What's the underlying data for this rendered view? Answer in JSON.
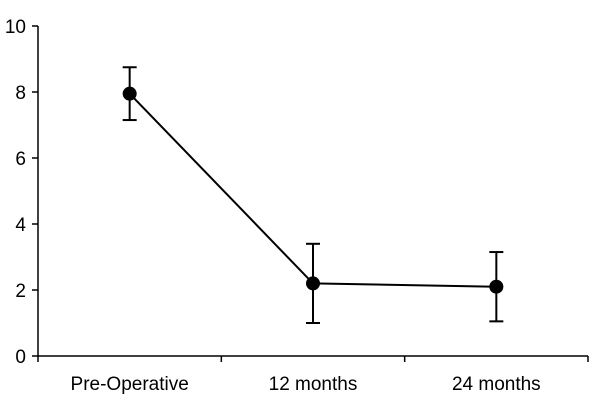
{
  "chart_data": {
    "type": "line",
    "title": "",
    "xlabel": "",
    "ylabel": "",
    "categories": [
      "Pre-Operative",
      "12 months",
      "24 months"
    ],
    "series": [
      {
        "values": [
          7.95,
          2.2,
          2.1
        ],
        "error_low": [
          7.15,
          1.0,
          1.05
        ],
        "error_high": [
          8.75,
          3.4,
          3.15
        ],
        "color": "#000000"
      }
    ],
    "ylim": [
      0,
      10
    ],
    "yticks": [
      0,
      2,
      4,
      6,
      8,
      10
    ],
    "grid": false,
    "legend": "none"
  }
}
